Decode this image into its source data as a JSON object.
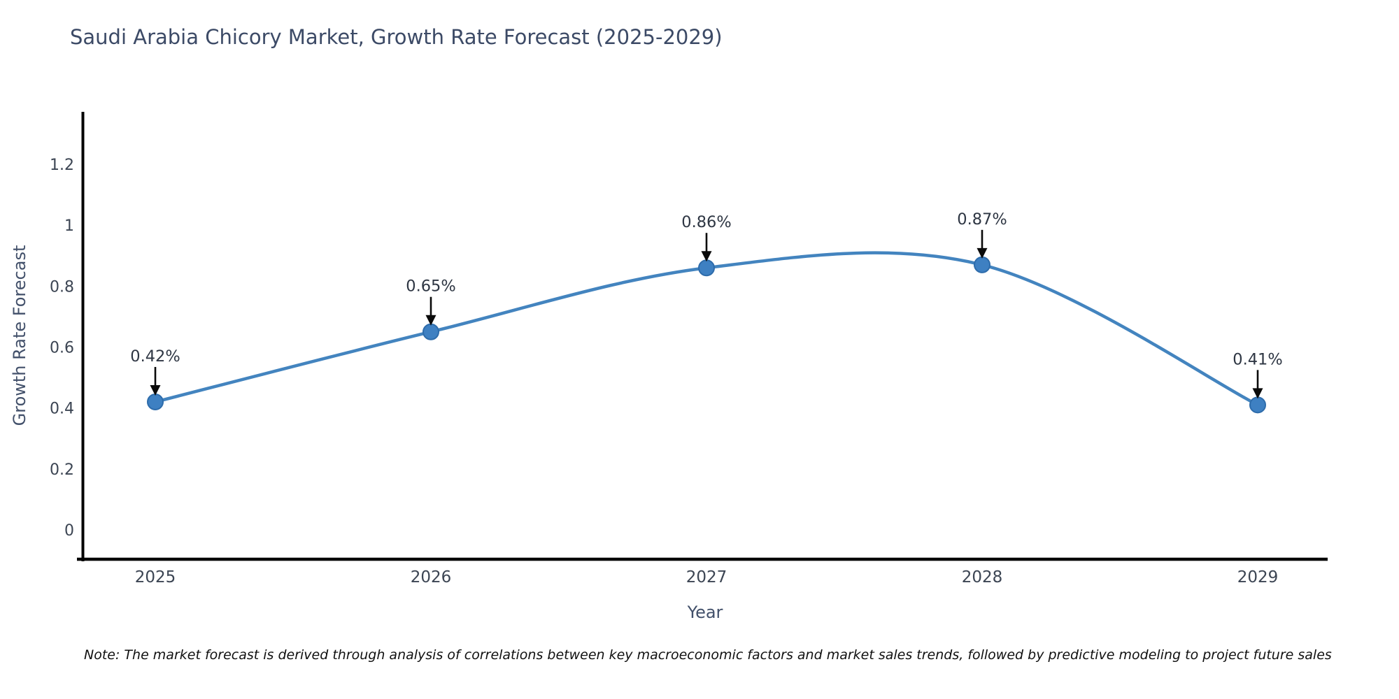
{
  "title": "Saudi Arabia Chicory Market, Growth Rate Forecast (2025-2029)",
  "note": "Note: The market forecast is derived through analysis of correlations between key macroeconomic factors and market sales trends, followed by predictive modeling to project future sales",
  "chart_data": {
    "type": "line",
    "title": "Saudi Arabia Chicory Market, Growth Rate Forecast (2025-2029)",
    "x": [
      "2025",
      "2026",
      "2027",
      "2028",
      "2029"
    ],
    "values": [
      0.42,
      0.65,
      0.86,
      0.87,
      0.41
    ],
    "point_labels": [
      "0.42%",
      "0.65%",
      "0.86%",
      "0.87%",
      "0.41%"
    ],
    "xlabel": "Year",
    "ylabel": "Growth Rate Forecast",
    "yticks": [
      0,
      0.2,
      0.4,
      0.6,
      0.8,
      1,
      1.2
    ],
    "ylim": [
      0,
      1.37
    ],
    "grid": false,
    "legend": "none",
    "curve": "smooth-spline",
    "marker": "circle-with-down-arrow-annotation",
    "colors": {
      "line": "#4384bf",
      "marker_fill": "#3e80c2",
      "marker_edge": "#2e6cab",
      "arrow": "#0a0a0a",
      "axis": "#000000",
      "tick_text": "#3c4553",
      "data_label_text": "#2e3643",
      "title_text": "#3c4a66",
      "axis_title_text": "#42506a",
      "background": "#ffffff"
    }
  }
}
